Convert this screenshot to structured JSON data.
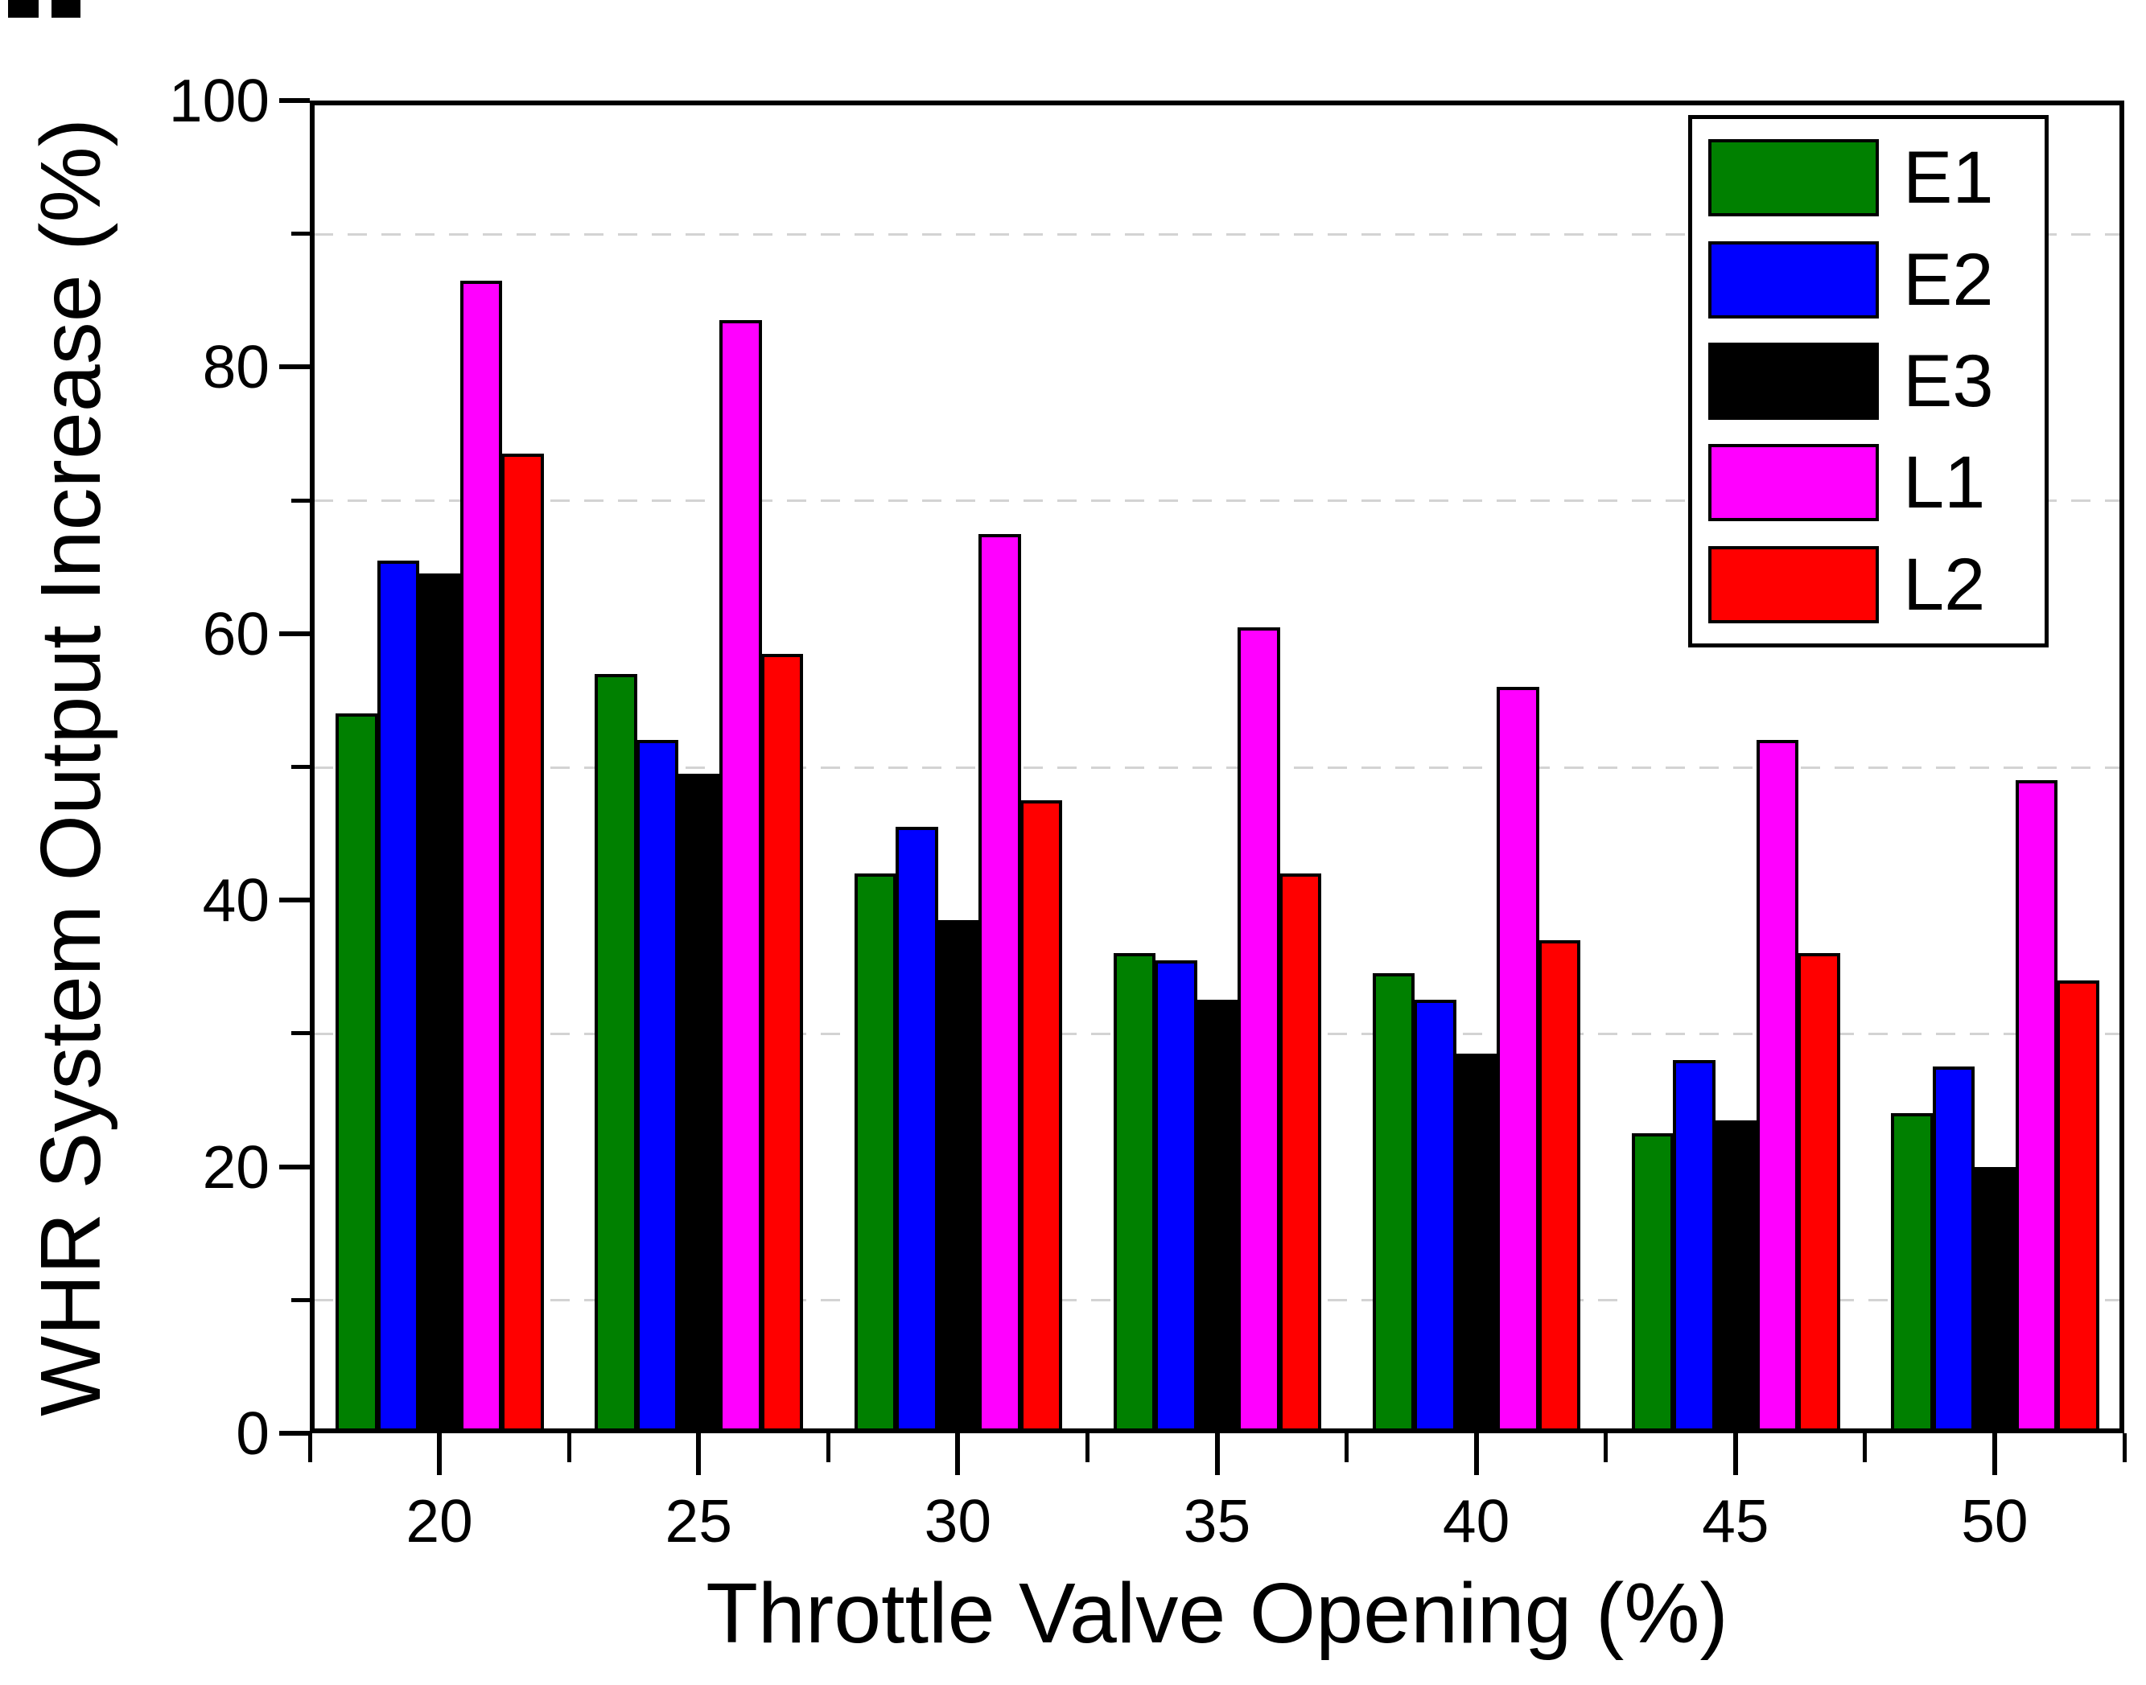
{
  "chart_data": {
    "type": "bar",
    "title": "",
    "xlabel": "Throttle Valve Opening (%)",
    "ylabel": "WHR System Output Increase (%)",
    "categories": [
      20,
      25,
      30,
      35,
      40,
      45,
      50
    ],
    "series": [
      {
        "name": "E1",
        "color": "#008000",
        "values": [
          54,
          57,
          42,
          36,
          34.5,
          22.5,
          24
        ]
      },
      {
        "name": "E2",
        "color": "#0000ff",
        "values": [
          65.5,
          52,
          45.5,
          35.5,
          32.5,
          28,
          27.5
        ]
      },
      {
        "name": "E3",
        "color": "#000000",
        "values": [
          64.5,
          49.5,
          38.5,
          32.5,
          28.5,
          23.5,
          20
        ]
      },
      {
        "name": "L1",
        "color": "#ff00ff",
        "values": [
          86.5,
          83.5,
          67.5,
          60.5,
          56,
          52,
          49
        ]
      },
      {
        "name": "L2",
        "color": "#ff0000",
        "values": [
          73.5,
          58.5,
          47.5,
          42,
          37,
          36,
          34
        ]
      }
    ],
    "ylim": [
      0,
      100
    ],
    "yticks": [
      0,
      20,
      40,
      60,
      80,
      100
    ],
    "minor_yticks": [
      10,
      30,
      50,
      70,
      90
    ],
    "grid": "dashed horizontal lines at minor y ticks",
    "grid_color": "#d3d3d3",
    "bar_outline_color": "#000000",
    "axis_color": "#000000",
    "legend_position": "top-right",
    "legend_entries": [
      "E1",
      "E2",
      "E3",
      "L1",
      "L2"
    ]
  }
}
